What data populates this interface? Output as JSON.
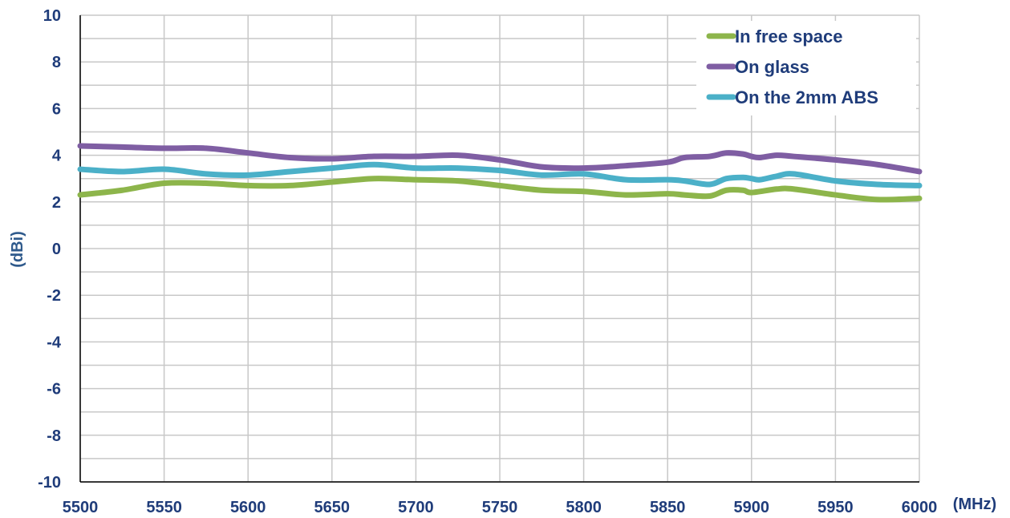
{
  "chart_data": {
    "type": "line",
    "title": "",
    "xlabel": "(MHz)",
    "ylabel": "(dBi)",
    "xlim": [
      5500,
      6000
    ],
    "ylim": [
      -10,
      10
    ],
    "x_ticks": [
      5500,
      5550,
      5600,
      5650,
      5700,
      5750,
      5800,
      5850,
      5900,
      5950,
      6000
    ],
    "y_ticks": [
      10,
      8,
      6,
      4,
      2,
      0,
      -2,
      -4,
      -6,
      -8,
      -10
    ],
    "x_tick_labels": [
      "5500",
      "5550",
      "5600",
      "5650",
      "5700",
      "5750",
      "5800",
      "5850",
      "5900",
      "5950",
      "6000"
    ],
    "y_tick_labels": [
      "10",
      "8",
      "6",
      "4",
      "2",
      "0",
      "-2",
      "-4",
      "-6",
      "-8",
      "-10"
    ],
    "grid": true,
    "legend_position": "top-right",
    "colors": {
      "axis_text": "#1f3c7a",
      "y_label": "#2f5a8c",
      "grid": "#c8c8c8",
      "axis": "#000000"
    },
    "series": [
      {
        "name": "In free space",
        "color": "#8db54b",
        "x": [
          5500,
          5525,
          5550,
          5575,
          5600,
          5625,
          5650,
          5675,
          5700,
          5725,
          5750,
          5775,
          5800,
          5825,
          5850,
          5860,
          5875,
          5885,
          5895,
          5900,
          5915,
          5925,
          5950,
          5975,
          6000
        ],
        "y": [
          2.3,
          2.5,
          2.8,
          2.8,
          2.7,
          2.7,
          2.85,
          3.0,
          2.95,
          2.9,
          2.7,
          2.5,
          2.45,
          2.3,
          2.35,
          2.3,
          2.25,
          2.5,
          2.5,
          2.4,
          2.55,
          2.55,
          2.3,
          2.1,
          2.15
        ]
      },
      {
        "name": "On glass",
        "color": "#7f5ea3",
        "x": [
          5500,
          5525,
          5550,
          5575,
          5600,
          5625,
          5650,
          5675,
          5700,
          5725,
          5750,
          5775,
          5800,
          5825,
          5850,
          5860,
          5875,
          5885,
          5895,
          5900,
          5905,
          5915,
          5925,
          5950,
          5975,
          6000
        ],
        "y": [
          4.4,
          4.35,
          4.3,
          4.3,
          4.1,
          3.9,
          3.85,
          3.95,
          3.95,
          4.0,
          3.8,
          3.5,
          3.45,
          3.55,
          3.7,
          3.9,
          3.95,
          4.1,
          4.05,
          3.95,
          3.9,
          4.0,
          3.95,
          3.8,
          3.6,
          3.3
        ]
      },
      {
        "name": "On the 2mm ABS",
        "color": "#4bb0c8",
        "x": [
          5500,
          5525,
          5550,
          5575,
          5600,
          5625,
          5650,
          5675,
          5700,
          5725,
          5750,
          5775,
          5800,
          5825,
          5850,
          5860,
          5875,
          5885,
          5895,
          5900,
          5905,
          5915,
          5925,
          5950,
          5975,
          6000
        ],
        "y": [
          3.4,
          3.3,
          3.4,
          3.2,
          3.15,
          3.3,
          3.45,
          3.6,
          3.45,
          3.45,
          3.35,
          3.15,
          3.2,
          2.95,
          2.95,
          2.9,
          2.75,
          3.0,
          3.05,
          3.0,
          2.95,
          3.1,
          3.2,
          2.9,
          2.75,
          2.7
        ]
      }
    ]
  }
}
